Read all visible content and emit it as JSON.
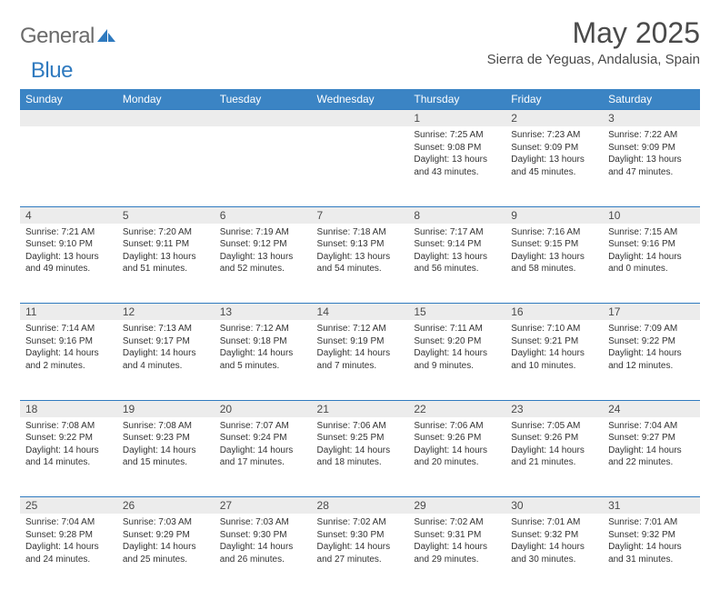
{
  "logo": {
    "general": "General",
    "blue": "Blue"
  },
  "title": "May 2025",
  "location": "Sierra de Yeguas, Andalusia, Spain",
  "header_color": "#3b84c4",
  "rule_color": "#2f7abf",
  "daynum_bg": "#ececec",
  "days_of_week": [
    "Sunday",
    "Monday",
    "Tuesday",
    "Wednesday",
    "Thursday",
    "Friday",
    "Saturday"
  ],
  "weeks": [
    [
      null,
      null,
      null,
      null,
      {
        "n": "1",
        "sr": "7:25 AM",
        "ss": "9:08 PM",
        "dl1": "Daylight: 13 hours",
        "dl2": "and 43 minutes."
      },
      {
        "n": "2",
        "sr": "7:23 AM",
        "ss": "9:09 PM",
        "dl1": "Daylight: 13 hours",
        "dl2": "and 45 minutes."
      },
      {
        "n": "3",
        "sr": "7:22 AM",
        "ss": "9:09 PM",
        "dl1": "Daylight: 13 hours",
        "dl2": "and 47 minutes."
      }
    ],
    [
      {
        "n": "4",
        "sr": "7:21 AM",
        "ss": "9:10 PM",
        "dl1": "Daylight: 13 hours",
        "dl2": "and 49 minutes."
      },
      {
        "n": "5",
        "sr": "7:20 AM",
        "ss": "9:11 PM",
        "dl1": "Daylight: 13 hours",
        "dl2": "and 51 minutes."
      },
      {
        "n": "6",
        "sr": "7:19 AM",
        "ss": "9:12 PM",
        "dl1": "Daylight: 13 hours",
        "dl2": "and 52 minutes."
      },
      {
        "n": "7",
        "sr": "7:18 AM",
        "ss": "9:13 PM",
        "dl1": "Daylight: 13 hours",
        "dl2": "and 54 minutes."
      },
      {
        "n": "8",
        "sr": "7:17 AM",
        "ss": "9:14 PM",
        "dl1": "Daylight: 13 hours",
        "dl2": "and 56 minutes."
      },
      {
        "n": "9",
        "sr": "7:16 AM",
        "ss": "9:15 PM",
        "dl1": "Daylight: 13 hours",
        "dl2": "and 58 minutes."
      },
      {
        "n": "10",
        "sr": "7:15 AM",
        "ss": "9:16 PM",
        "dl1": "Daylight: 14 hours",
        "dl2": "and 0 minutes."
      }
    ],
    [
      {
        "n": "11",
        "sr": "7:14 AM",
        "ss": "9:16 PM",
        "dl1": "Daylight: 14 hours",
        "dl2": "and 2 minutes."
      },
      {
        "n": "12",
        "sr": "7:13 AM",
        "ss": "9:17 PM",
        "dl1": "Daylight: 14 hours",
        "dl2": "and 4 minutes."
      },
      {
        "n": "13",
        "sr": "7:12 AM",
        "ss": "9:18 PM",
        "dl1": "Daylight: 14 hours",
        "dl2": "and 5 minutes."
      },
      {
        "n": "14",
        "sr": "7:12 AM",
        "ss": "9:19 PM",
        "dl1": "Daylight: 14 hours",
        "dl2": "and 7 minutes."
      },
      {
        "n": "15",
        "sr": "7:11 AM",
        "ss": "9:20 PM",
        "dl1": "Daylight: 14 hours",
        "dl2": "and 9 minutes."
      },
      {
        "n": "16",
        "sr": "7:10 AM",
        "ss": "9:21 PM",
        "dl1": "Daylight: 14 hours",
        "dl2": "and 10 minutes."
      },
      {
        "n": "17",
        "sr": "7:09 AM",
        "ss": "9:22 PM",
        "dl1": "Daylight: 14 hours",
        "dl2": "and 12 minutes."
      }
    ],
    [
      {
        "n": "18",
        "sr": "7:08 AM",
        "ss": "9:22 PM",
        "dl1": "Daylight: 14 hours",
        "dl2": "and 14 minutes."
      },
      {
        "n": "19",
        "sr": "7:08 AM",
        "ss": "9:23 PM",
        "dl1": "Daylight: 14 hours",
        "dl2": "and 15 minutes."
      },
      {
        "n": "20",
        "sr": "7:07 AM",
        "ss": "9:24 PM",
        "dl1": "Daylight: 14 hours",
        "dl2": "and 17 minutes."
      },
      {
        "n": "21",
        "sr": "7:06 AM",
        "ss": "9:25 PM",
        "dl1": "Daylight: 14 hours",
        "dl2": "and 18 minutes."
      },
      {
        "n": "22",
        "sr": "7:06 AM",
        "ss": "9:26 PM",
        "dl1": "Daylight: 14 hours",
        "dl2": "and 20 minutes."
      },
      {
        "n": "23",
        "sr": "7:05 AM",
        "ss": "9:26 PM",
        "dl1": "Daylight: 14 hours",
        "dl2": "and 21 minutes."
      },
      {
        "n": "24",
        "sr": "7:04 AM",
        "ss": "9:27 PM",
        "dl1": "Daylight: 14 hours",
        "dl2": "and 22 minutes."
      }
    ],
    [
      {
        "n": "25",
        "sr": "7:04 AM",
        "ss": "9:28 PM",
        "dl1": "Daylight: 14 hours",
        "dl2": "and 24 minutes."
      },
      {
        "n": "26",
        "sr": "7:03 AM",
        "ss": "9:29 PM",
        "dl1": "Daylight: 14 hours",
        "dl2": "and 25 minutes."
      },
      {
        "n": "27",
        "sr": "7:03 AM",
        "ss": "9:30 PM",
        "dl1": "Daylight: 14 hours",
        "dl2": "and 26 minutes."
      },
      {
        "n": "28",
        "sr": "7:02 AM",
        "ss": "9:30 PM",
        "dl1": "Daylight: 14 hours",
        "dl2": "and 27 minutes."
      },
      {
        "n": "29",
        "sr": "7:02 AM",
        "ss": "9:31 PM",
        "dl1": "Daylight: 14 hours",
        "dl2": "and 29 minutes."
      },
      {
        "n": "30",
        "sr": "7:01 AM",
        "ss": "9:32 PM",
        "dl1": "Daylight: 14 hours",
        "dl2": "and 30 minutes."
      },
      {
        "n": "31",
        "sr": "7:01 AM",
        "ss": "9:32 PM",
        "dl1": "Daylight: 14 hours",
        "dl2": "and 31 minutes."
      }
    ]
  ],
  "labels": {
    "sunrise": "Sunrise:",
    "sunset": "Sunset:"
  }
}
